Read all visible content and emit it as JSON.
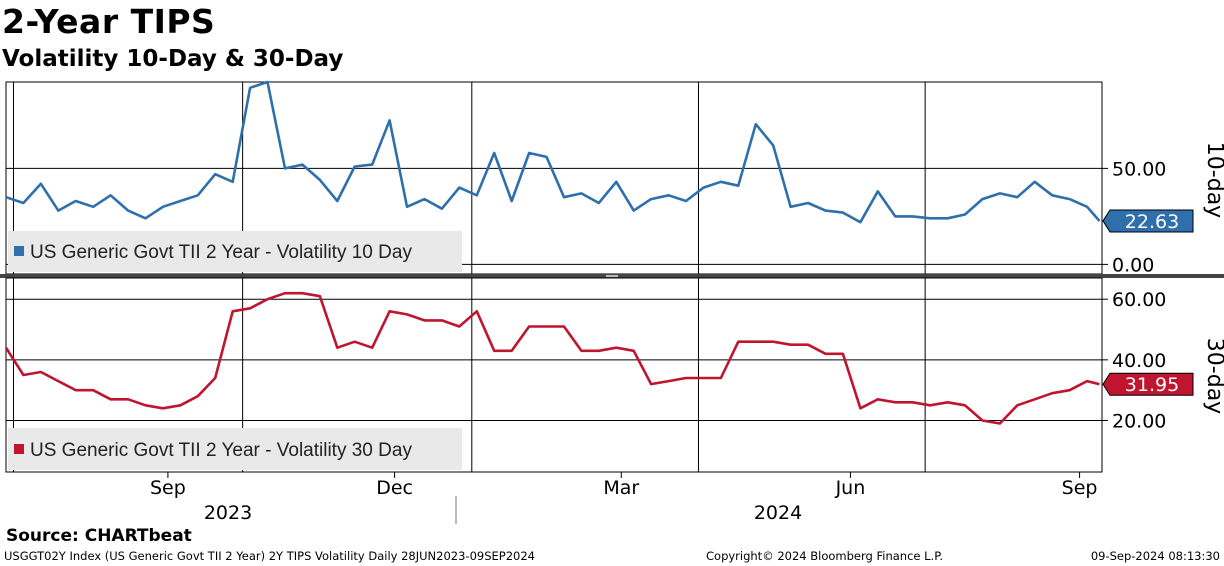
{
  "title": "2-Year TIPS",
  "subtitle": "Volatility 10-Day & 30-Day",
  "source": "Source: CHARTbeat",
  "footer": {
    "left": "USGGT02Y Index (US Generic Govt TII 2 Year) 2Y TIPS Volatility  Daily 28JUN2023-09SEP2024",
    "center": "Copyright© 2024 Bloomberg Finance L.P.",
    "right": "09-Sep-2024 08:13:30"
  },
  "x_axis": {
    "month_labels": [
      "Sep",
      "Dec",
      "Mar",
      "Jun",
      "Sep"
    ],
    "year_labels": [
      "2023",
      "2024"
    ]
  },
  "chart_data": [
    {
      "type": "line",
      "panel": "top",
      "side_label": "10-day",
      "series": [
        {
          "name": "US Generic Govt TII 2 Year - Volatility 10 Day",
          "color": "#2e6fac",
          "last_value": "22.63",
          "x": [
            "2023-06-28",
            "2023-07-05",
            "2023-07-12",
            "2023-07-19",
            "2023-07-26",
            "2023-08-02",
            "2023-08-09",
            "2023-08-16",
            "2023-08-23",
            "2023-08-30",
            "2023-09-06",
            "2023-09-13",
            "2023-09-20",
            "2023-09-27",
            "2023-10-04",
            "2023-10-11",
            "2023-10-18",
            "2023-10-25",
            "2023-11-01",
            "2023-11-08",
            "2023-11-15",
            "2023-11-22",
            "2023-11-29",
            "2023-12-06",
            "2023-12-13",
            "2023-12-20",
            "2023-12-27",
            "2024-01-03",
            "2024-01-10",
            "2024-01-17",
            "2024-01-24",
            "2024-01-31",
            "2024-02-07",
            "2024-02-14",
            "2024-02-21",
            "2024-02-28",
            "2024-03-06",
            "2024-03-13",
            "2024-03-20",
            "2024-03-27",
            "2024-04-03",
            "2024-04-10",
            "2024-04-17",
            "2024-04-24",
            "2024-05-01",
            "2024-05-08",
            "2024-05-15",
            "2024-05-22",
            "2024-05-29",
            "2024-06-05",
            "2024-06-12",
            "2024-06-19",
            "2024-06-26",
            "2024-07-03",
            "2024-07-10",
            "2024-07-17",
            "2024-07-24",
            "2024-07-31",
            "2024-08-07",
            "2024-08-14",
            "2024-08-21",
            "2024-08-28",
            "2024-09-04",
            "2024-09-09"
          ],
          "values": [
            35,
            32,
            42,
            28,
            33,
            30,
            36,
            28,
            24,
            30,
            33,
            36,
            47,
            43,
            92,
            95,
            50,
            52,
            44,
            33,
            51,
            52,
            75,
            30,
            34,
            29,
            40,
            36,
            58,
            33,
            58,
            56,
            35,
            37,
            32,
            43,
            28,
            34,
            36,
            33,
            40,
            43,
            41,
            73,
            62,
            30,
            32,
            28,
            27,
            22,
            38,
            25,
            25,
            24,
            24,
            26,
            34,
            37,
            35,
            43,
            36,
            34,
            30,
            22.63
          ]
        }
      ],
      "ylim": [
        -5,
        95
      ],
      "yticks": [
        "0.00",
        "50.00"
      ],
      "ytick_values": [
        0,
        50
      ]
    },
    {
      "type": "line",
      "panel": "bottom",
      "side_label": "30-day",
      "series": [
        {
          "name": "US Generic Govt TII 2 Year - Volatility 30 Day",
          "color": "#c0152f",
          "last_value": "31.95",
          "x": [
            "2023-06-28",
            "2023-07-05",
            "2023-07-12",
            "2023-07-19",
            "2023-07-26",
            "2023-08-02",
            "2023-08-09",
            "2023-08-16",
            "2023-08-23",
            "2023-08-30",
            "2023-09-06",
            "2023-09-13",
            "2023-09-20",
            "2023-09-27",
            "2023-10-04",
            "2023-10-11",
            "2023-10-18",
            "2023-10-25",
            "2023-11-01",
            "2023-11-08",
            "2023-11-15",
            "2023-11-22",
            "2023-11-29",
            "2023-12-06",
            "2023-12-13",
            "2023-12-20",
            "2023-12-27",
            "2024-01-03",
            "2024-01-10",
            "2024-01-17",
            "2024-01-24",
            "2024-01-31",
            "2024-02-07",
            "2024-02-14",
            "2024-02-21",
            "2024-02-28",
            "2024-03-06",
            "2024-03-13",
            "2024-03-20",
            "2024-03-27",
            "2024-04-03",
            "2024-04-10",
            "2024-04-17",
            "2024-04-24",
            "2024-05-01",
            "2024-05-08",
            "2024-05-15",
            "2024-05-22",
            "2024-05-29",
            "2024-06-05",
            "2024-06-12",
            "2024-06-19",
            "2024-06-26",
            "2024-07-03",
            "2024-07-10",
            "2024-07-17",
            "2024-07-24",
            "2024-07-31",
            "2024-08-07",
            "2024-08-14",
            "2024-08-21",
            "2024-08-28",
            "2024-09-04",
            "2024-09-09"
          ],
          "values": [
            44,
            35,
            36,
            33,
            30,
            30,
            27,
            27,
            25,
            24,
            25,
            28,
            34,
            56,
            57,
            60,
            62,
            62,
            61,
            44,
            46,
            44,
            56,
            55,
            53,
            53,
            51,
            56,
            43,
            43,
            51,
            51,
            51,
            43,
            43,
            44,
            43,
            32,
            33,
            34,
            34,
            34,
            46,
            46,
            46,
            45,
            45,
            42,
            42,
            24,
            27,
            26,
            26,
            25,
            26,
            25,
            20,
            19,
            25,
            27,
            29,
            30,
            33,
            31.95
          ]
        }
      ],
      "ylim": [
        3,
        67
      ],
      "yticks": [
        "20.00",
        "40.00",
        "60.00"
      ],
      "ytick_values": [
        20,
        40,
        60
      ]
    }
  ]
}
